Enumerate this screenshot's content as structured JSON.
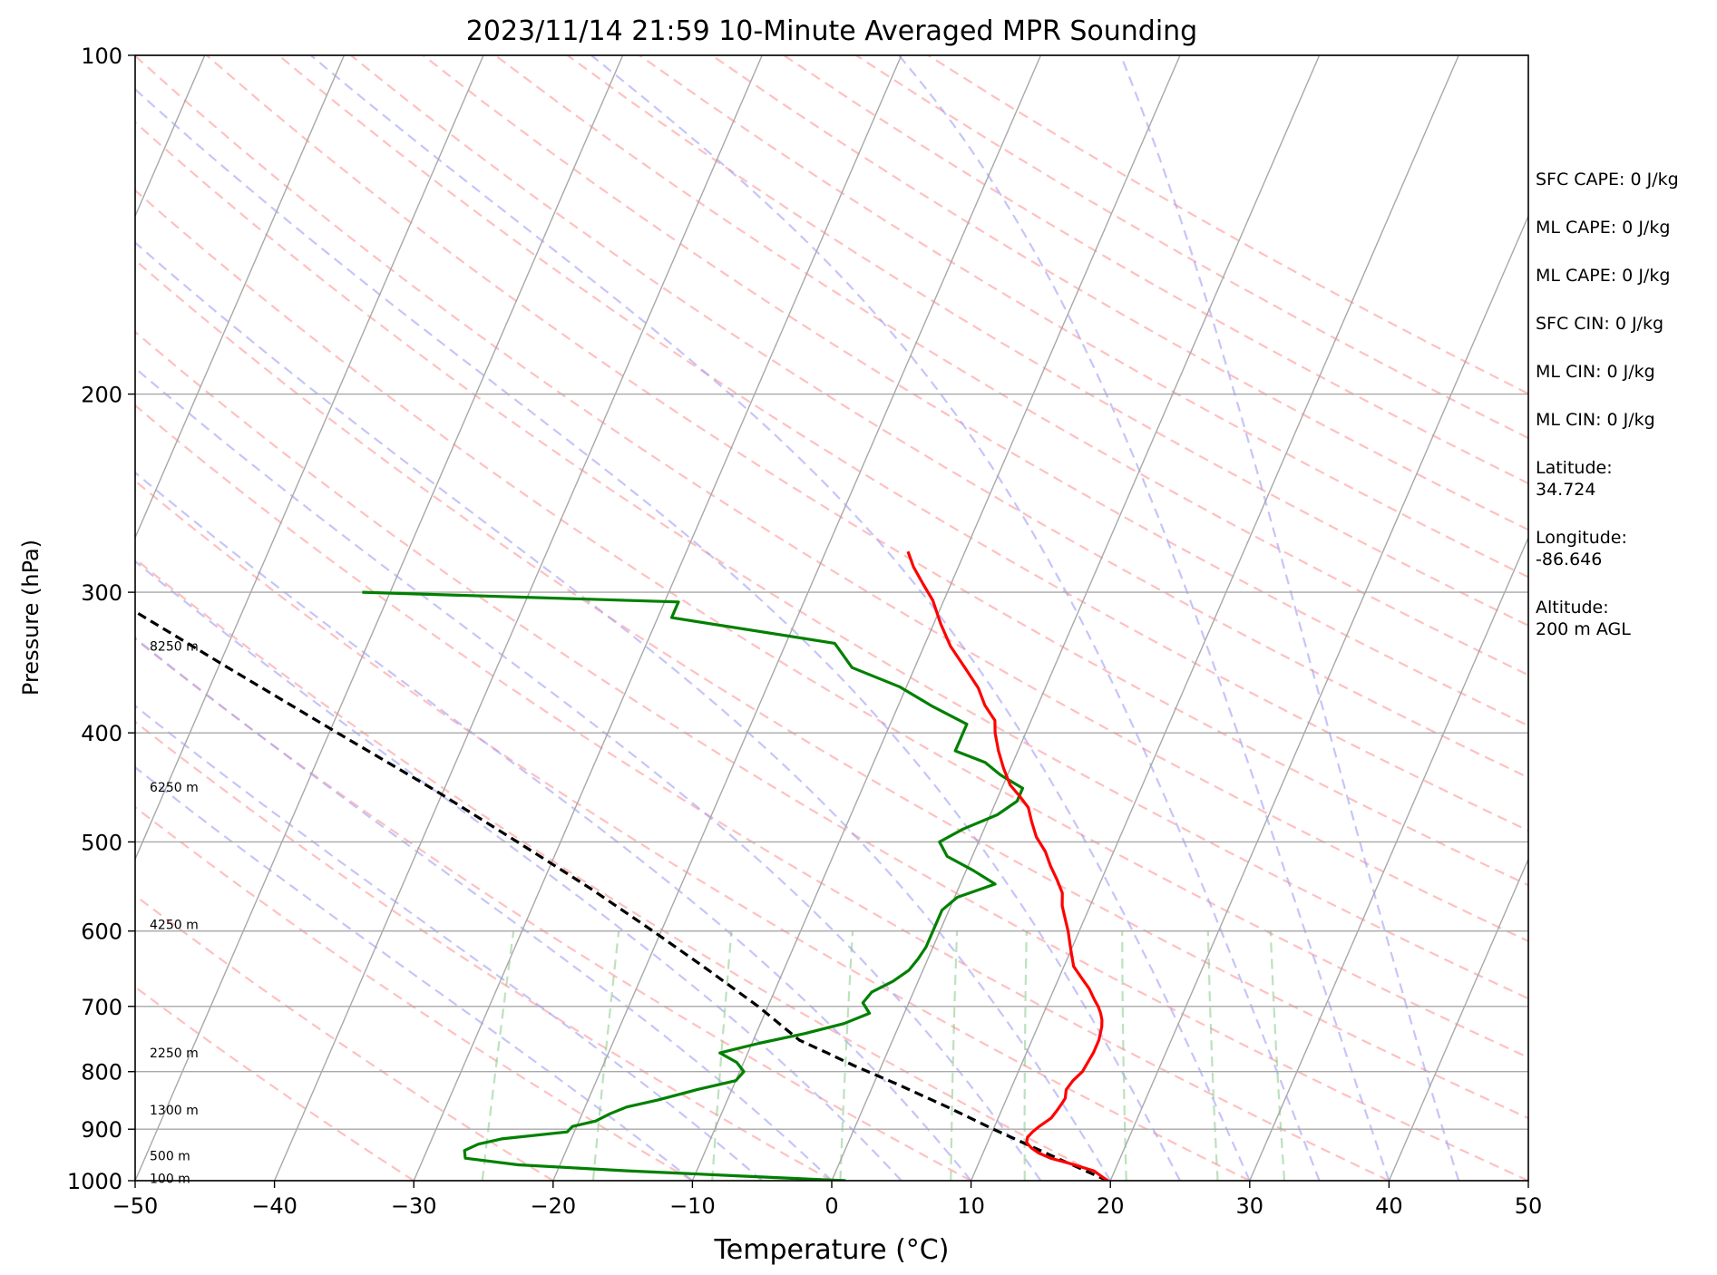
{
  "chart_data": {
    "type": "skew-t",
    "title": "2023/11/14 21:59 10-Minute Averaged MPR Sounding",
    "xlabel": "Temperature (°C)",
    "ylabel": "Pressure (hPa)",
    "xlim": [
      -50,
      50
    ],
    "ylim": [
      1000,
      100
    ],
    "yscale": "log",
    "grid": true,
    "x_ticks": [
      "−50",
      "−40",
      "−30",
      "−20",
      "−10",
      "0",
      "10",
      "20",
      "30",
      "40",
      "50"
    ],
    "y_ticks": [
      "1000",
      "900",
      "800",
      "700",
      "600",
      "500",
      "400",
      "300",
      "200",
      "100"
    ],
    "height_labels": [
      {
        "text": "100 m",
        "p": 995
      },
      {
        "text": "500 m",
        "p": 950
      },
      {
        "text": "1300 m",
        "p": 865
      },
      {
        "text": "2250 m",
        "p": 770
      },
      {
        "text": "4250 m",
        "p": 592
      },
      {
        "text": "6250 m",
        "p": 447
      },
      {
        "text": "8250 m",
        "p": 335
      }
    ],
    "temperature": {
      "color": "#ff0000",
      "p": [
        1000,
        980,
        965,
        955,
        945,
        935,
        925,
        915,
        905,
        895,
        880,
        865,
        855,
        845,
        830,
        815,
        800,
        785,
        770,
        750,
        730,
        720,
        710,
        700,
        690,
        675,
        660,
        645,
        630,
        615,
        600,
        585,
        570,
        555,
        540,
        525,
        510,
        495,
        480,
        466,
        455,
        445,
        430,
        415,
        400,
        390,
        378,
        365,
        350,
        335,
        320,
        305,
        295,
        285,
        276
      ],
      "t": [
        19.8,
        18.5,
        16.5,
        15.0,
        14.0,
        13.3,
        12.8,
        12.7,
        12.9,
        13.2,
        13.8,
        14.0,
        14.1,
        14.2,
        14.0,
        14.2,
        14.6,
        14.7,
        14.8,
        14.8,
        14.6,
        14.4,
        14.1,
        13.7,
        13.2,
        12.5,
        11.6,
        10.7,
        10.2,
        9.7,
        9.2,
        8.6,
        8.0,
        7.6,
        6.8,
        5.9,
        5.1,
        4.0,
        3.2,
        2.5,
        1.5,
        0.5,
        -0.5,
        -1.4,
        -2.2,
        -2.6,
        -3.8,
        -4.8,
        -6.4,
        -8.1,
        -9.5,
        -10.8,
        -12.0,
        -13.2,
        -14.1
      ]
    },
    "dewpoint": {
      "color": "#008000",
      "p": [
        1000,
        990,
        980,
        968,
        955,
        940,
        928,
        918,
        905,
        895,
        885,
        872,
        860,
        848,
        830,
        815,
        800,
        785,
        770,
        755,
        740,
        725,
        710,
        695,
        680,
        665,
        650,
        635,
        620,
        605,
        590,
        575,
        560,
        545,
        530,
        515,
        500,
        487,
        473,
        460,
        448,
        436,
        425,
        415,
        405,
        393,
        379,
        364,
        350,
        333,
        316,
        306,
        300
      ],
      "t": [
        1.0,
        -7.0,
        -15.0,
        -23.0,
        -27.0,
        -27.3,
        -26.5,
        -25.0,
        -20.5,
        -20.3,
        -18.8,
        -18.0,
        -17.0,
        -15.0,
        -12.5,
        -10.0,
        -9.7,
        -10.5,
        -12.0,
        -9.5,
        -6.5,
        -4.0,
        -2.5,
        -3.3,
        -3.0,
        -1.8,
        -1.0,
        -0.7,
        -0.5,
        -0.5,
        -0.5,
        -0.5,
        0.2,
        2.5,
        0.5,
        -1.8,
        -2.8,
        -1.5,
        0.5,
        1.5,
        1.5,
        -0.5,
        -2.0,
        -4.5,
        -4.5,
        -4.5,
        -7.5,
        -10.5,
        -14.5,
        -16.5,
        -29.0,
        -29.0,
        -52.0
      ]
    },
    "parcel": {
      "color": "#000000",
      "p": [
        1000,
        950,
        900,
        860,
        820,
        790,
        770,
        760,
        750,
        700,
        650,
        600,
        550,
        500,
        450,
        400,
        350,
        300,
        280
      ],
      "t": [
        19.8,
        15.0,
        10.0,
        6.0,
        1.6,
        -2.0,
        -4.3,
        -5.5,
        -6.7,
        -10.7,
        -15.4,
        -20.6,
        -26.4,
        -33.1,
        -40.6,
        -49.4,
        -59.3,
        -70.6,
        -75.5
      ]
    }
  },
  "stats": [
    "SFC CAPE: 0 J/kg",
    "ML CAPE: 0 J/kg",
    "ML CAPE: 0 J/kg",
    "SFC CIN: 0 J/kg",
    "ML CIN: 0 J/kg",
    "ML CIN: 0 J/kg",
    "Latitude:\n34.724",
    "Longitude:\n-86.646",
    "Altitude:\n200 m AGL"
  ]
}
